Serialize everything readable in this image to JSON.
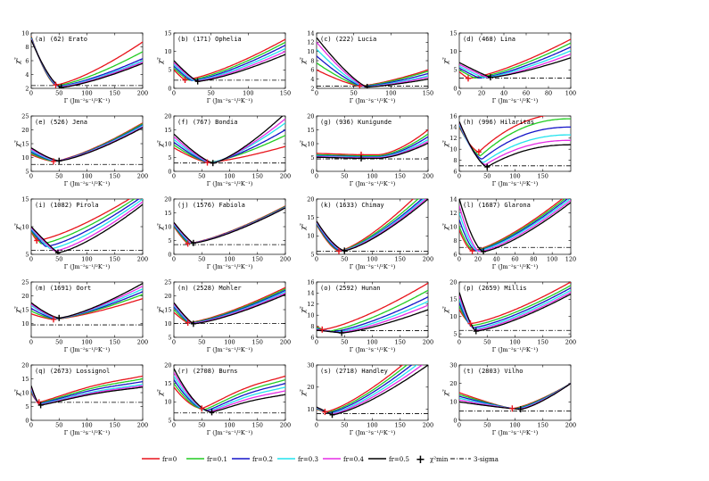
{
  "chart_data": {
    "type": "line",
    "common": {
      "ylabel": "χ²",
      "xlabel": "Γ (Jm⁻²s⁻¹/²K⁻¹)",
      "series_names": [
        "fr=0",
        "fr=0.1",
        "fr=0.2",
        "fr=0.3",
        "fr=0.4",
        "fr=0.5"
      ],
      "series_colors": [
        "#e8141b",
        "#22cc22",
        "#1515c8",
        "#22e3ee",
        "#e52ee5",
        "#000000"
      ],
      "min_marker_label": "χ²min",
      "sigma_label": "3-sigma",
      "min_marker_symbol": "+"
    },
    "panels": [
      {
        "title": "(a) (62) Erato",
        "xlim": [
          0,
          200
        ],
        "ylim": [
          2,
          10
        ],
        "xticks": [
          0,
          50,
          100,
          150,
          200
        ],
        "yticks": [
          2,
          4,
          6,
          8,
          10
        ],
        "sigma": 2.4,
        "shape": "dip",
        "min_x": 50,
        "min_y": 2.2,
        "start": [
          9.5,
          9.4,
          9.3,
          9.2,
          9.1,
          9.0
        ],
        "end": [
          8.7,
          7.3,
          6.3,
          6.0,
          5.8,
          5.6
        ],
        "minx": [
          44,
          46,
          48,
          50,
          52,
          54
        ],
        "miny": [
          2.5,
          2.4,
          2.3,
          2.25,
          2.2,
          2.15
        ],
        "sharp": 1.5
      },
      {
        "title": "(b) (171) Ophelia",
        "xlim": [
          0,
          150
        ],
        "ylim": [
          0,
          15
        ],
        "xticks": [
          0,
          50,
          100,
          150
        ],
        "yticks": [
          0,
          5,
          10,
          15
        ],
        "sigma": 2.2,
        "shape": "dip",
        "min_x": 32,
        "min_y": 2.0,
        "start": [
          5.0,
          5.5,
          6.0,
          6.5,
          7.0,
          7.5
        ],
        "end": [
          13.3,
          12.5,
          11.7,
          10.8,
          10.0,
          9.2
        ],
        "minx": [
          15,
          20,
          24,
          27,
          30,
          32
        ],
        "miny": [
          2.3,
          2.2,
          2.1,
          2.05,
          2.0,
          1.9
        ],
        "sharp": 1.2
      },
      {
        "title": "(c) (222) Lucia",
        "xlim": [
          0,
          150
        ],
        "ylim": [
          2,
          14
        ],
        "xticks": [
          0,
          50,
          100,
          150
        ],
        "yticks": [
          2,
          4,
          6,
          8,
          10,
          12,
          14
        ],
        "sigma": 2.5,
        "shape": "dip",
        "min_x": 68,
        "min_y": 2.3,
        "start": [
          6.0,
          7.5,
          9.0,
          10.5,
          12.0,
          13.0
        ],
        "end": [
          6.0,
          5.7,
          5.2,
          4.7,
          4.4,
          4.0
        ],
        "minx": [
          58,
          60,
          62,
          64,
          66,
          68
        ],
        "miny": [
          2.5,
          2.45,
          2.4,
          2.35,
          2.3,
          2.3
        ],
        "sharp": 1.3
      },
      {
        "title": "(d) (468) Lina",
        "xlim": [
          0,
          100
        ],
        "ylim": [
          0,
          15
        ],
        "xticks": [
          0,
          20,
          40,
          60,
          80,
          100
        ],
        "yticks": [
          0,
          5,
          10,
          15
        ],
        "sigma": 2.8,
        "shape": "dip",
        "min_x": 5,
        "min_y": 2.6,
        "start": [
          4.5,
          5.0,
          5.5,
          6.0,
          6.5,
          7.0
        ],
        "end": [
          13.3,
          12.3,
          11.2,
          10.2,
          9.3,
          8.3
        ],
        "minx": [
          8,
          14,
          18,
          22,
          26,
          28
        ],
        "miny": [
          2.7,
          2.8,
          2.8,
          2.9,
          2.9,
          3.0
        ],
        "sharp": 1.1
      },
      {
        "title": "(e) (526) Jena",
        "xlim": [
          0,
          200
        ],
        "ylim": [
          5,
          25
        ],
        "xticks": [
          0,
          50,
          100,
          150,
          200
        ],
        "yticks": [
          5,
          10,
          15,
          20,
          25
        ],
        "sigma": 7.5,
        "shape": "dip",
        "min_x": 5,
        "min_y": 7.2,
        "start": [
          11.0,
          11.5,
          12.0,
          12.5,
          13.0,
          13.5
        ],
        "end": [
          22.5,
          22.2,
          21.8,
          21.5,
          21.1,
          20.8
        ],
        "minx": [
          40,
          42,
          44,
          46,
          48,
          50
        ],
        "miny": [
          8.6,
          8.6,
          8.7,
          8.7,
          8.8,
          8.8
        ],
        "sharp": 1.4
      },
      {
        "title": "(f) (767) Bondia",
        "xlim": [
          0,
          200
        ],
        "ylim": [
          0,
          20
        ],
        "xticks": [
          0,
          50,
          100,
          150,
          200
        ],
        "yticks": [
          0,
          5,
          10,
          15,
          20
        ],
        "sigma": 3.0,
        "shape": "dip",
        "min_x": 65,
        "min_y": 3.2,
        "start": [
          8.5,
          9.5,
          10.5,
          11.5,
          12.5,
          13.5
        ],
        "end": [
          9.0,
          13.0,
          15.0,
          17.5,
          19.0,
          21.0
        ],
        "minx": [
          60,
          62,
          64,
          66,
          68,
          70
        ],
        "miny": [
          3.2,
          3.2,
          3.1,
          3.1,
          3.0,
          3.0
        ],
        "sharp": 1.3
      },
      {
        "title": "(g) (936) Kunigunde",
        "xlim": [
          0,
          200
        ],
        "ylim": [
          0,
          20
        ],
        "xticks": [
          0,
          50,
          100,
          150,
          200
        ],
        "yticks": [
          0,
          5,
          10,
          15,
          20
        ],
        "sigma": 4.5,
        "shape": "flat",
        "min_x": 65,
        "min_y": 4.3,
        "start": [
          6.5,
          6.0,
          5.7,
          5.5,
          5.3,
          5.1
        ],
        "end": [
          15.0,
          13.5,
          12.5,
          11.5,
          10.8,
          10.2
        ],
        "minx": [
          80,
          80,
          80,
          80,
          80,
          80
        ],
        "miny": [
          6.0,
          5.6,
          5.3,
          5.1,
          4.9,
          4.7
        ],
        "sharp": 1.0
      },
      {
        "title": "(h) (996) Hilaritas",
        "xlim": [
          0,
          200
        ],
        "ylim": [
          6,
          16
        ],
        "xticks": [
          0,
          50,
          100,
          150
        ],
        "yticks": [
          6,
          8,
          10,
          12,
          14,
          16
        ],
        "sigma": 7.0,
        "shape": "sat",
        "min_x": 50,
        "min_y": 6.8,
        "start": [
          14.0,
          14.2,
          14.4,
          14.6,
          14.8,
          15.0
        ],
        "end": [
          16.5,
          15.5,
          14.0,
          12.6,
          11.6,
          10.8
        ],
        "minx": [
          35,
          38,
          41,
          44,
          47,
          50
        ],
        "miny": [
          9.5,
          8.8,
          8.2,
          7.6,
          7.2,
          6.8
        ],
        "sharp": 1.5
      },
      {
        "title": "(i) (1082) Pirola",
        "xlim": [
          0,
          200
        ],
        "ylim": [
          5,
          15
        ],
        "xticks": [
          0,
          50,
          100,
          150,
          200
        ],
        "yticks": [
          5,
          10,
          15
        ],
        "sigma": 5.7,
        "shape": "dip",
        "min_x": 48,
        "min_y": 5.3,
        "start": [
          9.0,
          9.2,
          9.4,
          9.6,
          9.8,
          10.0
        ],
        "end": [
          16.5,
          16.0,
          15.5,
          15.0,
          14.5,
          14.0
        ],
        "minx": [
          10,
          18,
          26,
          34,
          42,
          48
        ],
        "miny": [
          7.5,
          6.9,
          6.4,
          6.0,
          5.6,
          5.3
        ],
        "sharp": 1.1
      },
      {
        "title": "(j) (1576) Fabiola",
        "xlim": [
          0,
          200
        ],
        "ylim": [
          0,
          20
        ],
        "xticks": [
          0,
          50,
          100,
          150,
          200
        ],
        "yticks": [
          0,
          5,
          10,
          15,
          20
        ],
        "sigma": 3.5,
        "shape": "dip",
        "min_x": 10,
        "min_y": 3.0,
        "start": [
          10.0,
          10.3,
          10.6,
          10.9,
          11.2,
          11.5
        ],
        "end": [
          17.5,
          17.3,
          17.1,
          17.0,
          16.9,
          16.8
        ],
        "minx": [
          25,
          27,
          29,
          31,
          33,
          35
        ],
        "miny": [
          3.9,
          3.9,
          4.0,
          4.0,
          4.1,
          4.1
        ],
        "sharp": 1.2
      },
      {
        "title": "(k) (1633) Chimay",
        "xlim": [
          0,
          200
        ],
        "ylim": [
          5,
          20
        ],
        "xticks": [
          0,
          50,
          100,
          150,
          200
        ],
        "yticks": [
          5,
          10,
          15,
          20
        ],
        "sigma": 5.8,
        "shape": "dip",
        "min_x": 35,
        "min_y": 5.3,
        "start": [
          13.0,
          13.2,
          13.4,
          13.6,
          13.8,
          14.0
        ],
        "end": [
          24.0,
          22.5,
          21.5,
          21.0,
          20.5,
          20.0
        ],
        "minx": [
          40,
          42,
          44,
          46,
          48,
          50
        ],
        "miny": [
          5.9,
          5.9,
          5.9,
          6.0,
          6.0,
          6.0
        ],
        "sharp": 1.5
      },
      {
        "title": "(l) (1687) Glarona",
        "xlim": [
          0,
          120
        ],
        "ylim": [
          6,
          14
        ],
        "xticks": [
          0,
          20,
          40,
          60,
          80,
          100,
          120
        ],
        "yticks": [
          6,
          8,
          10,
          12,
          14
        ],
        "sigma": 7.0,
        "shape": "dip",
        "min_x": 14,
        "min_y": 6.4,
        "start": [
          9.5,
          10.0,
          11.0,
          12.0,
          13.0,
          14.0
        ],
        "end": [
          15.0,
          14.7,
          14.4,
          14.1,
          13.8,
          13.5
        ],
        "minx": [
          14,
          16,
          18,
          20,
          22,
          26
        ],
        "miny": [
          6.5,
          6.5,
          6.5,
          6.5,
          6.4,
          6.4
        ],
        "sharp": 1.6
      },
      {
        "title": "(m) (1691) Oort",
        "xlim": [
          0,
          200
        ],
        "ylim": [
          5,
          25
        ],
        "xticks": [
          0,
          50,
          100,
          150,
          200
        ],
        "yticks": [
          10,
          15,
          20,
          25
        ],
        "sigma": 9.5,
        "shape": "dip",
        "min_x": 5,
        "min_y": 9.0,
        "start": [
          13.5,
          14.5,
          15.5,
          16.5,
          17.0,
          17.5
        ],
        "end": [
          19.0,
          20.5,
          21.5,
          22.5,
          23.5,
          24.5
        ],
        "minx": [
          40,
          42,
          44,
          46,
          48,
          50
        ],
        "miny": [
          11.5,
          11.6,
          11.7,
          11.8,
          11.9,
          12.0
        ],
        "sharp": 1.4
      },
      {
        "title": "(n) (2528) Mohler",
        "xlim": [
          0,
          200
        ],
        "ylim": [
          5,
          25
        ],
        "xticks": [
          0,
          50,
          100,
          150,
          200
        ],
        "yticks": [
          5,
          10,
          15,
          20,
          25
        ],
        "sigma": 10.0,
        "shape": "dip",
        "min_x": 32,
        "min_y": 9.8,
        "start": [
          14.0,
          15.0,
          16.0,
          16.5,
          17.0,
          17.5
        ],
        "end": [
          23.0,
          22.5,
          22.0,
          21.5,
          21.0,
          20.5
        ],
        "minx": [
          25,
          27,
          29,
          31,
          33,
          35
        ],
        "miny": [
          10.3,
          10.2,
          10.1,
          10.0,
          10.0,
          9.9
        ],
        "sharp": 1.2
      },
      {
        "title": "(o) (2592) Hunan",
        "xlim": [
          0,
          200
        ],
        "ylim": [
          6,
          16
        ],
        "xticks": [
          0,
          50,
          100,
          150,
          200
        ],
        "yticks": [
          6,
          8,
          10,
          12,
          14,
          16
        ],
        "sigma": 7.2,
        "shape": "dip",
        "min_x": 45,
        "min_y": 6.8,
        "start": [
          8.0,
          7.8,
          7.6,
          7.5,
          7.4,
          7.3
        ],
        "end": [
          15.8,
          14.5,
          13.3,
          12.5,
          11.8,
          11.0
        ],
        "minx": [
          10,
          20,
          28,
          34,
          40,
          45
        ],
        "miny": [
          7.4,
          7.1,
          7.0,
          6.9,
          6.85,
          6.8
        ],
        "sharp": 1.0
      },
      {
        "title": "(p) (2659) Millis",
        "xlim": [
          0,
          200
        ],
        "ylim": [
          4,
          20
        ],
        "xticks": [
          0,
          50,
          100,
          150,
          200
        ],
        "yticks": [
          5,
          10,
          15,
          20
        ],
        "sigma": 6.0,
        "shape": "dip",
        "min_x": 30,
        "min_y": 5.8,
        "start": [
          12.0,
          13.0,
          14.0,
          15.0,
          16.0,
          17.0
        ],
        "end": [
          20.0,
          19.0,
          18.3,
          17.6,
          17.0,
          16.5
        ],
        "minx": [
          20,
          22,
          24,
          26,
          28,
          30
        ],
        "miny": [
          8.0,
          7.4,
          6.8,
          6.4,
          6.1,
          5.8
        ],
        "sharp": 1.4
      },
      {
        "title": "(q) (2673) Lossignol",
        "xlim": [
          0,
          200
        ],
        "ylim": [
          0,
          20
        ],
        "xticks": [
          0,
          50,
          100,
          150,
          200
        ],
        "yticks": [
          0,
          5,
          10,
          15,
          20
        ],
        "sigma": 6.5,
        "shape": "hump",
        "min_x": 15,
        "min_y": 5.5,
        "start": [
          10.0,
          10.5,
          11.0,
          11.5,
          12.0,
          12.5
        ],
        "end": [
          16.0,
          15.0,
          14.0,
          13.0,
          12.5,
          12.0
        ],
        "minx": [
          14,
          15,
          15,
          16,
          16,
          17
        ],
        "miny": [
          6.5,
          6.2,
          6.0,
          5.8,
          5.6,
          5.5
        ],
        "sharp": 1.6
      },
      {
        "title": "(r) (2708) Burns",
        "xlim": [
          0,
          200
        ],
        "ylim": [
          5,
          20
        ],
        "xticks": [
          0,
          50,
          100,
          150,
          200
        ],
        "yticks": [
          5,
          10,
          15,
          20
        ],
        "sigma": 7.0,
        "shape": "hump",
        "min_x": 68,
        "min_y": 7.2,
        "start": [
          14.0,
          15.0,
          16.0,
          17.0,
          18.0,
          19.0
        ],
        "end": [
          17.0,
          16.0,
          15.0,
          14.0,
          13.0,
          12.0
        ],
        "minx": [
          50,
          55,
          60,
          63,
          66,
          68
        ],
        "miny": [
          8.2,
          7.9,
          7.7,
          7.5,
          7.4,
          7.2
        ],
        "sharp": 1.7
      },
      {
        "title": "(s) (2718) Handley",
        "xlim": [
          0,
          200
        ],
        "ylim": [
          5,
          30
        ],
        "xticks": [
          0,
          50,
          100,
          150,
          200
        ],
        "yticks": [
          10,
          20,
          30
        ],
        "sigma": 8.0,
        "shape": "dip",
        "min_x": 28,
        "min_y": 7.5,
        "start": [
          10.0,
          10.2,
          10.4,
          10.6,
          10.8,
          11.0
        ],
        "end": [
          40.0,
          38.0,
          36.0,
          34.0,
          32.0,
          30.0
        ],
        "minx": [
          15,
          18,
          21,
          24,
          26,
          28
        ],
        "miny": [
          8.8,
          8.5,
          8.3,
          8.0,
          7.8,
          7.5
        ],
        "sharp": 1.0
      },
      {
        "title": "(t) (2803) Vilho",
        "xlim": [
          0,
          200
        ],
        "ylim": [
          0,
          30
        ],
        "xticks": [
          0,
          50,
          100,
          150,
          200
        ],
        "yticks": [
          0,
          10,
          20,
          30
        ],
        "sigma": 5.0,
        "shape": "dip",
        "min_x": 110,
        "min_y": 6.0,
        "start": [
          15.0,
          14.0,
          13.0,
          12.0,
          11.0,
          10.0
        ],
        "end": [
          20.0,
          20.0,
          20.0,
          20.0,
          20.0,
          20.0
        ],
        "minx": [
          95,
          98,
          101,
          104,
          107,
          110
        ],
        "miny": [
          6.4,
          6.3,
          6.2,
          6.1,
          6.05,
          6.0
        ],
        "sharp": 1.2
      }
    ]
  }
}
